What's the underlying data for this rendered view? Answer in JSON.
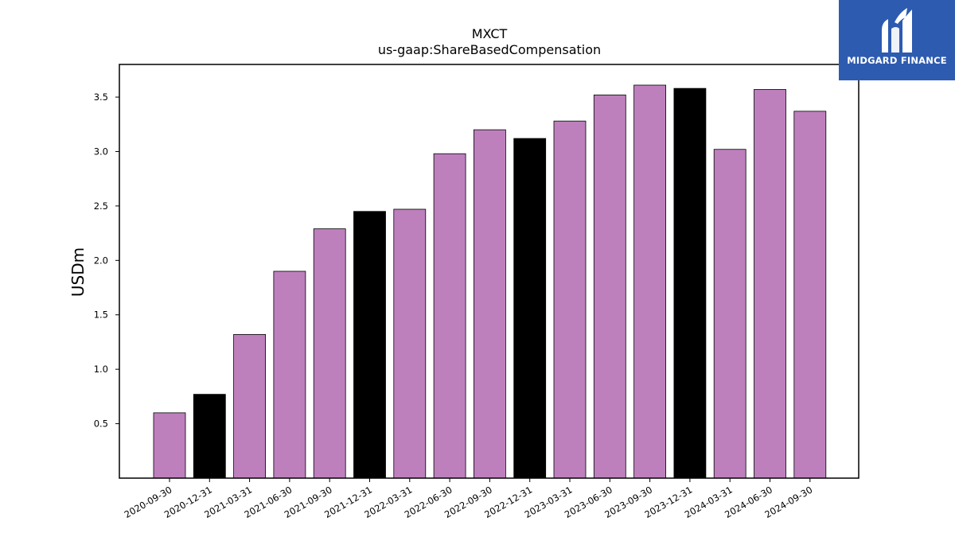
{
  "chart_data": {
    "type": "bar",
    "title": "MXCT",
    "subtitle": "us-gaap:ShareBasedCompensation",
    "xlabel": "",
    "ylabel": "USDm",
    "ylim": [
      0,
      3.8
    ],
    "yticks": [
      "0.5",
      "1.0",
      "1.5",
      "2.0",
      "2.5",
      "3.0",
      "3.5"
    ],
    "categories": [
      "2020-09-30",
      "2020-12-31",
      "2021-03-31",
      "2021-06-30",
      "2021-09-30",
      "2021-12-31",
      "2022-03-31",
      "2022-06-30",
      "2022-09-30",
      "2022-12-31",
      "2023-03-31",
      "2023-06-30",
      "2023-09-30",
      "2023-12-31",
      "2024-03-31",
      "2024-06-30",
      "2024-09-30"
    ],
    "values": [
      0.6,
      0.77,
      1.32,
      1.9,
      2.29,
      2.45,
      2.47,
      2.98,
      3.2,
      3.12,
      3.28,
      3.52,
      3.61,
      3.58,
      3.02,
      3.57,
      3.37
    ],
    "highlight": [
      false,
      true,
      false,
      false,
      false,
      true,
      false,
      false,
      false,
      true,
      false,
      false,
      false,
      true,
      false,
      false,
      false
    ],
    "colors": {
      "bar": "#bd80bd",
      "highlight": "#000000",
      "edge": "#000000"
    },
    "grid": false
  },
  "logo": {
    "text": "MIDGARD FINANCE",
    "background": "#2d5bb0"
  }
}
